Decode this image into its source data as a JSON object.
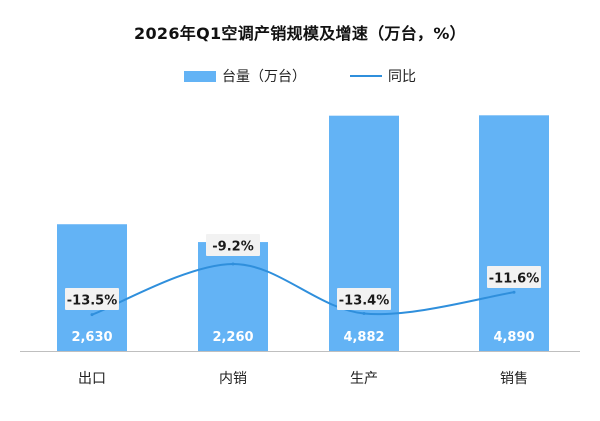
{
  "chart_data": {
    "type": "bar",
    "title": "2026年Q1空调产销规模及增速（万台，%）",
    "categories": [
      "出口",
      "内销",
      "生产",
      "销售"
    ],
    "series": [
      {
        "name": "台量（万台）",
        "kind": "bar",
        "color": "#63b3f5",
        "values": [
          2630,
          2260,
          4882,
          4890
        ],
        "labels": [
          "2,630",
          "2,260",
          "4,882",
          "4,890"
        ]
      },
      {
        "name": "同比",
        "kind": "line",
        "color": "#2f8fdc",
        "values": [
          -13.5,
          -9.2,
          -13.4,
          -11.6
        ],
        "labels": [
          "-13.5%",
          "-9.2%",
          "-13.4%",
          "-11.6%"
        ]
      }
    ],
    "bar_axis": {
      "ylim": [
        0,
        5000
      ]
    },
    "line_axis": {
      "ylim": [
        -14.8,
        -7.0
      ]
    },
    "grid": false,
    "legend_position": "top-center"
  }
}
